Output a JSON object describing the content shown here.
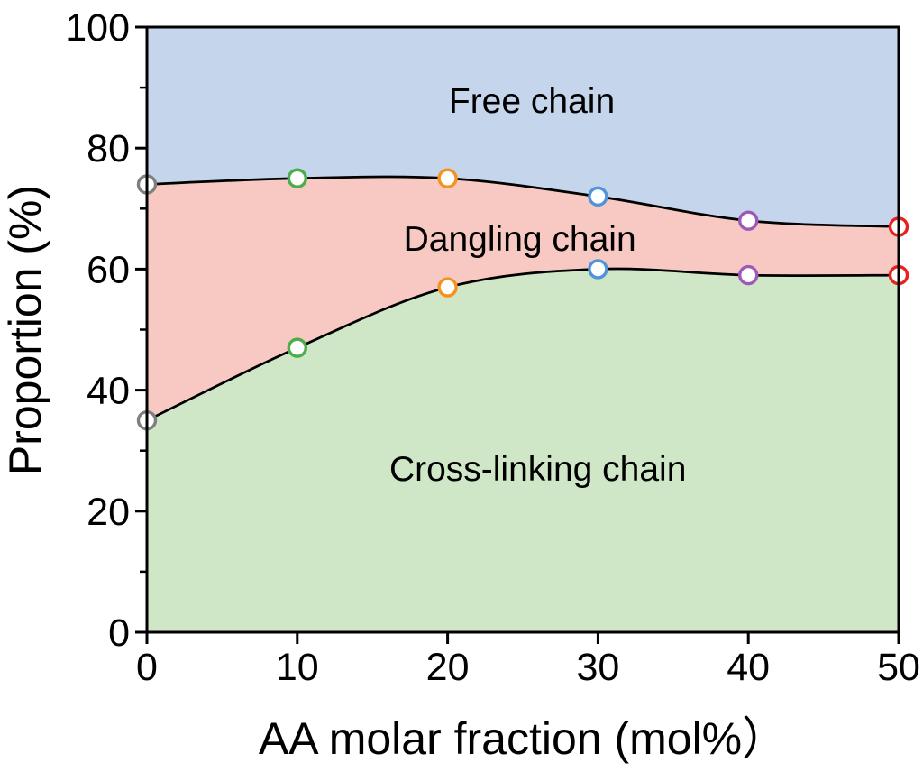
{
  "chart_data": {
    "type": "area",
    "subtype": "stacked-area",
    "title": "",
    "xlabel": "AA molar fraction (mol%）",
    "ylabel": "Proportion (%)",
    "xlim": [
      0,
      50
    ],
    "ylim": [
      0,
      100
    ],
    "x_ticks": [
      0,
      10,
      20,
      30,
      40,
      50
    ],
    "y_ticks": [
      0,
      20,
      40,
      60,
      80,
      100
    ],
    "y_minor_ticks": [
      10,
      30,
      50,
      70,
      90
    ],
    "grid": false,
    "frame": true,
    "x": [
      0,
      10,
      20,
      30,
      40,
      50
    ],
    "series": [
      {
        "name": "Cross-linking chain",
        "values": [
          35,
          47,
          57,
          60,
          59,
          59
        ],
        "fill": "#cfe6c7"
      },
      {
        "name": "Dangling chain",
        "values": [
          39,
          28,
          18,
          12,
          9,
          8
        ],
        "fill": "#f8c9c3"
      },
      {
        "name": "Free chain",
        "values": [
          26,
          25,
          25,
          28,
          32,
          33
        ],
        "fill": "#c5d5ec"
      }
    ],
    "stacked_boundaries": [
      {
        "name": "cross-linking-top-line",
        "values": [
          35,
          47,
          57,
          60,
          59,
          59
        ]
      },
      {
        "name": "dangling-top-line",
        "values": [
          74,
          75,
          75,
          72,
          68,
          67
        ]
      }
    ],
    "line_color": "#000000",
    "markers": {
      "shape": "circle-open",
      "fill": "#ffffff",
      "edge_colors_by_x": [
        "#7f7f7f",
        "#4bad4b",
        "#f5921f",
        "#4f94d9",
        "#9c59b8",
        "#e8211d"
      ]
    },
    "area_labels": [
      {
        "text": "Free chain",
        "x": 25.6,
        "y": 87.8
      },
      {
        "text": "Dangling chain",
        "x": 24.8,
        "y": 65.0
      },
      {
        "text": "Cross-linking chain",
        "x": 26.0,
        "y": 27.0
      }
    ]
  }
}
